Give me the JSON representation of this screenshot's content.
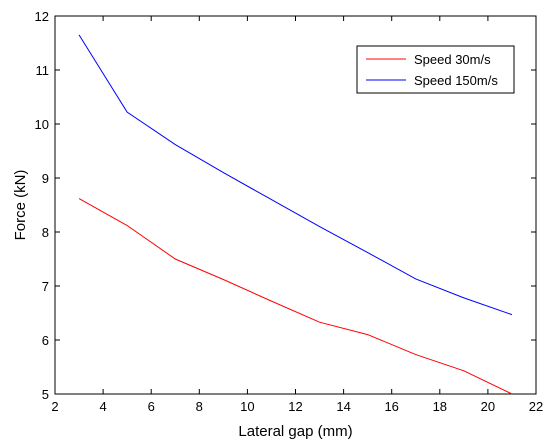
{
  "chart_data": {
    "type": "line",
    "title": "",
    "xlabel": "Lateral gap (mm)",
    "ylabel": "Force (kN)",
    "xlim": [
      2,
      22
    ],
    "ylim": [
      5,
      12
    ],
    "grid": false,
    "legend_position": "top-right",
    "x_ticks": [
      2,
      4,
      6,
      8,
      10,
      12,
      14,
      16,
      18,
      20,
      22
    ],
    "y_ticks": [
      5,
      6,
      7,
      8,
      9,
      10,
      11,
      12
    ],
    "x_tick_labels": [
      "2",
      "4",
      "6",
      "8",
      "10",
      "12",
      "14",
      "16",
      "18",
      "20",
      "22"
    ],
    "y_tick_labels": [
      "5",
      "6",
      "7",
      "8",
      "9",
      "10",
      "11",
      "12"
    ],
    "series": [
      {
        "name": "Speed 30m/s",
        "color": "#ff0000",
        "x": [
          3,
          5,
          7,
          9,
          11,
          13,
          15,
          17,
          19,
          21
        ],
        "y": [
          8.62,
          8.12,
          7.5,
          7.12,
          6.72,
          6.33,
          6.1,
          5.73,
          5.43,
          5.0
        ]
      },
      {
        "name": "Speed 150m/s",
        "color": "#0000ff",
        "x": [
          3,
          5,
          7,
          9,
          11,
          13,
          15,
          17,
          19,
          21
        ],
        "y": [
          11.65,
          10.22,
          9.62,
          9.1,
          8.6,
          8.1,
          7.62,
          7.13,
          6.78,
          6.47
        ]
      }
    ]
  }
}
